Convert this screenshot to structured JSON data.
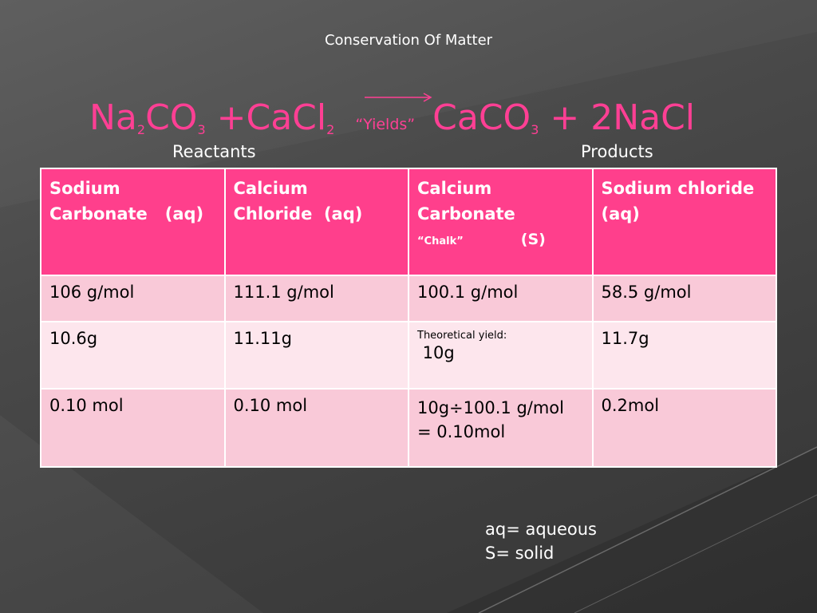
{
  "slide": {
    "title": "Conservation Of Matter",
    "equation": {
      "r1": "Na",
      "r1_sub1": "2",
      "r1_b": "CO",
      "r1_sub2": "3",
      "plus1": " +CaCl",
      "r2_sub": "2",
      "yields": "“Yields”",
      "p1": "CaCO",
      "p1_sub": "3",
      "p2": " + 2NaCl"
    },
    "label_reactants": "Reactants",
    "label_products": "Products"
  },
  "table": {
    "headers": [
      {
        "line1": "Sodium",
        "line2": "Carbonate   (aq)"
      },
      {
        "line1": "Calcium",
        "line2": "Chloride  (aq)"
      },
      {
        "line1": "Calcium",
        "line2": "Carbonate",
        "note": "“Chalk”",
        "state": "(S)"
      },
      {
        "line1": "Sodium chloride",
        "line2": "(aq)"
      }
    ],
    "rows": [
      [
        "106 g/mol",
        "111.1 g/mol",
        "100.1 g/mol",
        "58.5 g/mol"
      ],
      [
        "10.6g",
        "11.11g",
        {
          "label": "Theoretical yield:",
          "value": " 10g"
        },
        "11.7g"
      ],
      [
        "0.10 mol",
        "0.10 mol",
        {
          "line1": "10g÷100.1 g/mol",
          "line2": "= 0.10mol"
        },
        "0.2mol"
      ]
    ]
  },
  "legend": {
    "line1": "aq= aqueous",
    "line2": "S= solid"
  },
  "colors": {
    "accent_pink": "#ff3f8c",
    "row_pink_dark": "#f9c9d8",
    "row_pink_light": "#fde6ed"
  }
}
